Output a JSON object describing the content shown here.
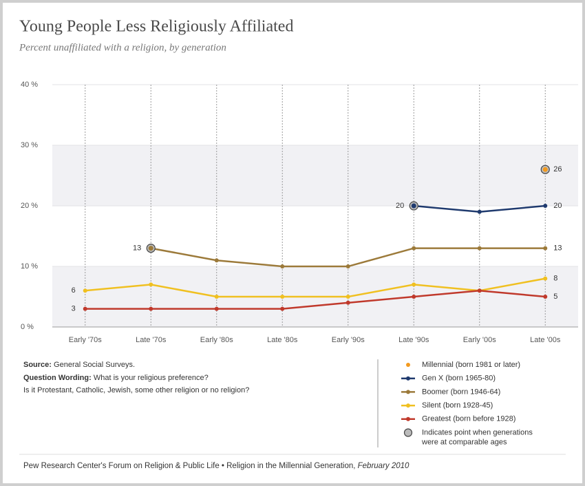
{
  "chart_data": {
    "type": "line",
    "title": "Young People Less Religiously Affiliated",
    "subtitle": "Percent unaffiliated with a religion, by generation",
    "categories": [
      "Early '70s",
      "Late '70s",
      "Early '80s",
      "Late '80s",
      "Early '90s",
      "Late '90s",
      "Early '00s",
      "Late '00s"
    ],
    "ylim": [
      0,
      40
    ],
    "yticks": [
      {
        "value": 0,
        "label": "0 %"
      },
      {
        "value": 10,
        "label": "10 %"
      },
      {
        "value": 20,
        "label": "20 %"
      },
      {
        "value": 30,
        "label": "30 %"
      },
      {
        "value": 40,
        "label": "40 %"
      }
    ],
    "grid": true,
    "series": [
      {
        "name": "Millennial (born 1981 or later)",
        "color": "#f39a1e",
        "values": [
          null,
          null,
          null,
          null,
          null,
          null,
          null,
          26
        ],
        "value_labels": [
          null,
          null,
          null,
          null,
          null,
          null,
          null,
          26
        ],
        "highlight_index": 7
      },
      {
        "name": "Gen X (born 1965-80)",
        "color": "#1f3a6e",
        "values": [
          null,
          null,
          null,
          null,
          null,
          20,
          19,
          20
        ],
        "value_labels": [
          null,
          null,
          null,
          null,
          null,
          20,
          null,
          20
        ],
        "highlight_index": 5
      },
      {
        "name": "Boomer (born 1946-64)",
        "color": "#9c7a3a",
        "values": [
          null,
          13,
          11,
          10,
          10,
          13,
          13,
          13
        ],
        "value_labels": [
          null,
          13,
          null,
          null,
          null,
          null,
          null,
          13
        ],
        "highlight_index": 1
      },
      {
        "name": "Silent (born 1928-45)",
        "color": "#f0c020",
        "values": [
          6,
          7,
          5,
          5,
          5,
          7,
          6,
          8
        ],
        "value_labels": [
          6,
          null,
          null,
          null,
          null,
          null,
          null,
          8
        ]
      },
      {
        "name": "Greatest (born before 1928)",
        "color": "#c0392b",
        "values": [
          3,
          3,
          3,
          3,
          4,
          5,
          6,
          5
        ],
        "value_labels": [
          3,
          null,
          null,
          null,
          null,
          null,
          null,
          5
        ]
      }
    ],
    "highlight_note": [
      "Indicates point when generations",
      "were at comparable ages"
    ],
    "source_label": "Source:",
    "source": "General Social Surveys.",
    "question_label": "Question Wording:",
    "question": [
      "What is your religious preference?",
      "Is it Protestant, Catholic, Jewish, some other religion or no religion?"
    ],
    "footer": "Pew Research Center's Forum on Religion & Public Life • Religion in the Millennial Generation,",
    "footer_date": "February 2010"
  }
}
